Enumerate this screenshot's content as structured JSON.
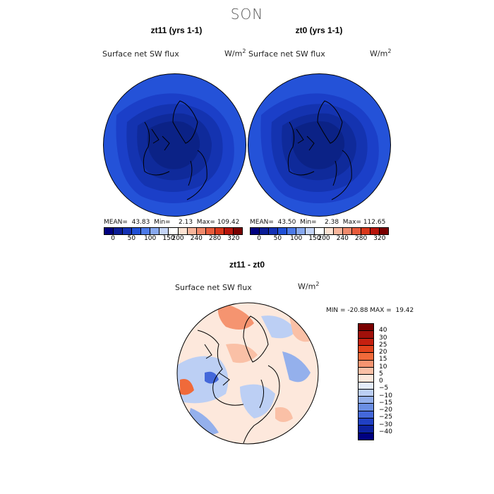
{
  "figure_title": "SON",
  "panels": {
    "left": {
      "title": "zt11 (yrs 1-1)",
      "field": "Surface net SW flux",
      "unit_base": "W/m",
      "unit_exp": "2",
      "stats": "MEAN=  43.83  Min=    2.13  Max= 109.42",
      "map_colors": [
        "#2452d8",
        "#1b3fc8",
        "#1433b0",
        "#0f2a9a",
        "#0b2286"
      ]
    },
    "right": {
      "title": "zt0 (yrs 1-1)",
      "field": "Surface net SW flux",
      "unit_base": "W/m",
      "unit_exp": "2",
      "stats": "MEAN=  43.50  Min=    2.38  Max= 112.65",
      "map_colors": [
        "#2452d8",
        "#1b3fc8",
        "#1433b0",
        "#0f2a9a",
        "#0b2286"
      ]
    },
    "diff": {
      "title": "zt11 - zt0",
      "field": "Surface net SW flux",
      "unit_base": "W/m",
      "unit_exp": "2",
      "stats": "MIN = -20.88 MAX =  19.42"
    }
  },
  "colorbar_abs": {
    "colors": [
      "#00007f",
      "#0b1d96",
      "#1431b4",
      "#2050d6",
      "#4c7ae8",
      "#88a9ef",
      "#c4d4f6",
      "#ffffff",
      "#fde3d3",
      "#f7b59b",
      "#f08a6c",
      "#e75c3c",
      "#d9381c",
      "#b8150c",
      "#7a0000"
    ],
    "labels": [
      "0",
      "50",
      "100",
      "150",
      "200",
      "240",
      "280",
      "320"
    ]
  },
  "colorbar_diff": {
    "colors": [
      "#7a0000",
      "#a0100a",
      "#c52010",
      "#e2431c",
      "#f06a3a",
      "#f59470",
      "#fac0a6",
      "#fde8dc",
      "#e4ecfb",
      "#bccff4",
      "#94b0ec",
      "#6b8fe4",
      "#4468da",
      "#2040c4",
      "#0d22a0",
      "#000080"
    ],
    "labels": [
      "40",
      "30",
      "25",
      "20",
      "15",
      "10",
      "5",
      "0",
      "−5",
      "−10",
      "−15",
      "−20",
      "−25",
      "−30",
      "−40"
    ]
  }
}
